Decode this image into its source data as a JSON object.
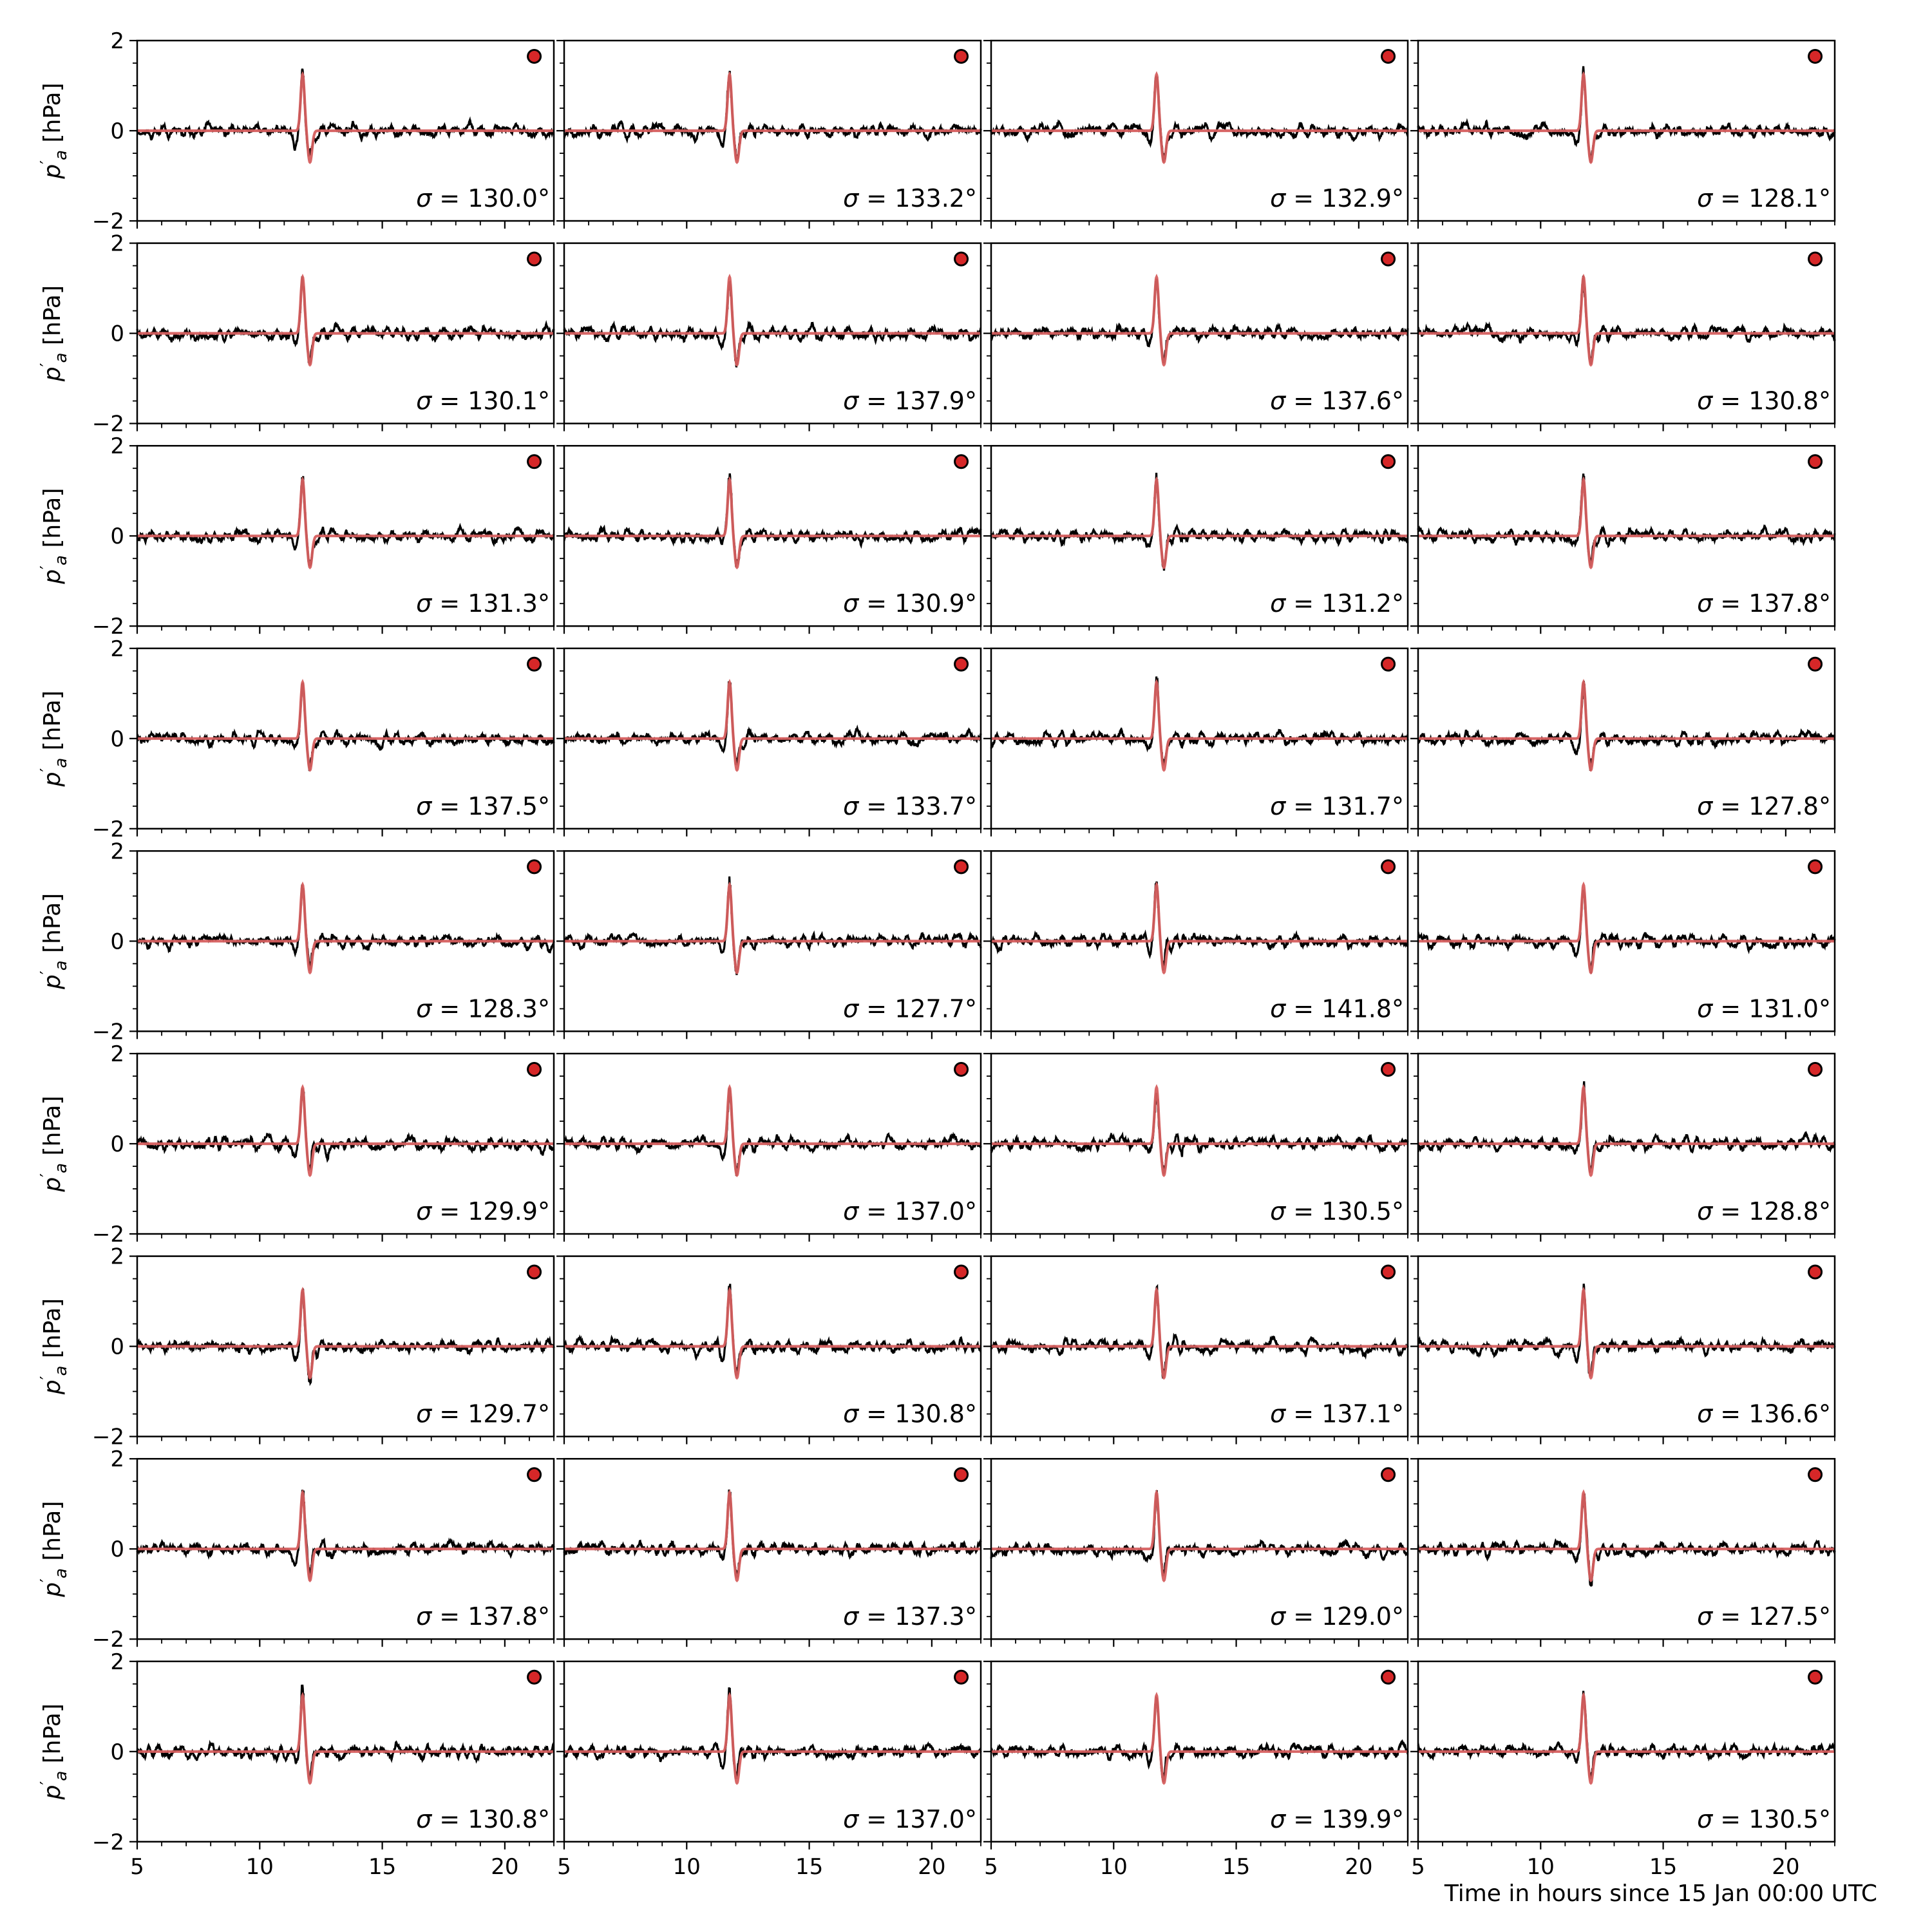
{
  "chart_data": {
    "type": "line",
    "layout": {
      "rows": 9,
      "cols": 4
    },
    "x_range": [
      5,
      22
    ],
    "y_range": [
      -2,
      2
    ],
    "x_ticks": [
      5,
      10,
      15,
      20
    ],
    "y_ticks": [
      -2,
      0,
      2
    ],
    "x_minor_step": 1,
    "y_minor_step": 0.5,
    "xlabel": "Time in hours since 15 Jan 00:00 UTC",
    "ylabel": "p'_a [hPa]",
    "ylabel_main": "p",
    "ylabel_sup": "′",
    "ylabel_sub": "a",
    "ylabel_unit": " [hPa]",
    "sigma_prefix": "σ = ",
    "degree_symbol": "°",
    "colors": {
      "observed": "#000000",
      "model": "#d65f5f",
      "marker": "#d62728",
      "marker_edge": "#000000"
    },
    "marker": {
      "x": 21.2,
      "y": 1.65
    },
    "model_pulse": {
      "peak_time": 11.75,
      "peak": 1.25,
      "trough_time": 12.05,
      "trough": -0.7
    },
    "sigma_values": [
      [
        130.0,
        133.2,
        132.9,
        128.1
      ],
      [
        130.1,
        137.9,
        137.6,
        130.8
      ],
      [
        131.3,
        130.9,
        131.2,
        137.8
      ],
      [
        137.5,
        133.7,
        131.7,
        127.8
      ],
      [
        128.3,
        127.7,
        141.8,
        131.0
      ],
      [
        129.9,
        137.0,
        130.5,
        128.8
      ],
      [
        129.7,
        130.8,
        137.1,
        136.6
      ],
      [
        137.8,
        137.3,
        129.0,
        127.5
      ],
      [
        130.8,
        137.0,
        139.9,
        130.5
      ]
    ],
    "grid": false,
    "legend": "none"
  }
}
